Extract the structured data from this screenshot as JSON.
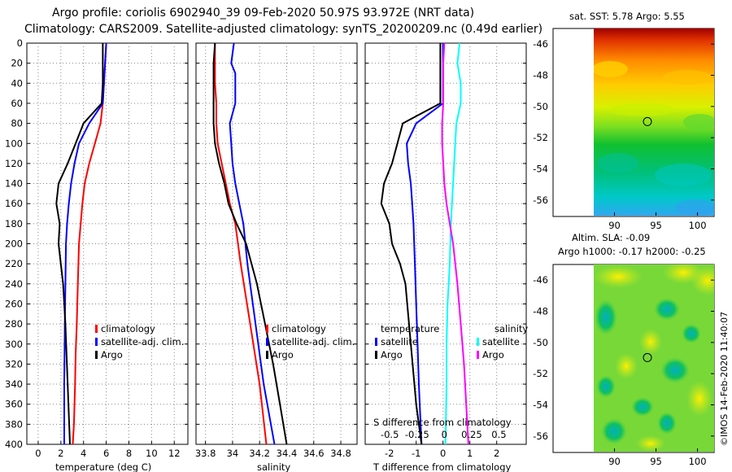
{
  "header": {
    "line1": "Argo profile: coriolis 6902940_39 09-Feb-2020 50.97S 93.972E (NRT data)",
    "line2": "Climatology: CARS2009. Satellite-adjusted climatology: synTS_20200209.nc (0.49d earlier)"
  },
  "colors": {
    "climatology": "#ff0000",
    "satellite": "#0000ff",
    "argo": "#000000",
    "sal_sat": "#00ffff",
    "sal_argo": "#ff00ff"
  },
  "chart_data": [
    {
      "type": "line",
      "id": "temperature",
      "xlabel": "temperature (deg C)",
      "ylabel": "depth",
      "xlim": [
        -1,
        13.2
      ],
      "ylim": [
        400,
        0
      ],
      "xticks": [
        0,
        2,
        4,
        6,
        8,
        10,
        12
      ],
      "xtick_labels": [
        "0",
        "2",
        "4",
        "6",
        "8",
        "10",
        "12"
      ],
      "yticks": [
        0,
        20,
        40,
        60,
        80,
        100,
        120,
        140,
        160,
        180,
        200,
        220,
        240,
        260,
        280,
        300,
        320,
        340,
        360,
        380,
        400
      ],
      "legend": [
        "climatology",
        "satellite-adj. clim.",
        "Argo"
      ],
      "series": [
        {
          "name": "climatology",
          "color": "red",
          "x": [
            6.0,
            5.9,
            5.8,
            5.7,
            5.5,
            5.0,
            4.5,
            4.1,
            3.9,
            3.75,
            3.6,
            3.5,
            3.4,
            3.3,
            3.25,
            3.2,
            3.15,
            3.05
          ],
          "y": [
            0,
            20,
            40,
            60,
            80,
            100,
            120,
            140,
            160,
            180,
            200,
            240,
            280,
            310,
            340,
            360,
            380,
            400
          ]
        },
        {
          "name": "satellite-adj. clim.",
          "color": "blue",
          "x": [
            6.0,
            5.9,
            5.8,
            5.7,
            4.5,
            3.6,
            3.2,
            2.9,
            2.7,
            2.55,
            2.45,
            2.4,
            2.35,
            2.3,
            2.3
          ],
          "y": [
            0,
            20,
            40,
            60,
            80,
            100,
            120,
            140,
            160,
            180,
            200,
            240,
            280,
            340,
            400
          ]
        },
        {
          "name": "Argo",
          "color": "black",
          "x": [
            5.7,
            5.7,
            5.7,
            5.6,
            4.0,
            3.3,
            2.6,
            1.8,
            1.6,
            1.9,
            1.8,
            2.0,
            2.2,
            2.4,
            2.5,
            2.6,
            2.7,
            2.8
          ],
          "y": [
            0,
            20,
            40,
            60,
            80,
            100,
            120,
            140,
            160,
            180,
            200,
            220,
            240,
            280,
            310,
            340,
            370,
            400
          ]
        }
      ]
    },
    {
      "type": "line",
      "id": "salinity",
      "xlabel": "salinity",
      "xlim": [
        33.73,
        34.92
      ],
      "ylim": [
        400,
        0
      ],
      "xticks": [
        33.8,
        34,
        34.2,
        34.4,
        34.6,
        34.8
      ],
      "xtick_labels": [
        "33.8",
        "34",
        "34.2",
        "34.4",
        "34.6",
        "34.8"
      ],
      "legend": [
        "climatology",
        "satellite-adj. clim.",
        "Argo"
      ],
      "series": [
        {
          "name": "climatology",
          "color": "red",
          "x": [
            33.87,
            33.87,
            33.87,
            33.88,
            33.88,
            33.89,
            33.92,
            33.95,
            33.98,
            34.02,
            34.06,
            34.13,
            34.2,
            34.25
          ],
          "y": [
            0,
            20,
            40,
            60,
            80,
            100,
            120,
            140,
            160,
            180,
            220,
            280,
            340,
            400
          ]
        },
        {
          "name": "satellite-adj. clim.",
          "color": "blue",
          "x": [
            34.01,
            33.99,
            34.02,
            34.02,
            33.98,
            33.99,
            34.0,
            34.02,
            34.05,
            34.08,
            34.11,
            34.17,
            34.23,
            34.31
          ],
          "y": [
            0,
            20,
            30,
            60,
            80,
            100,
            120,
            140,
            160,
            180,
            220,
            280,
            340,
            400
          ]
        },
        {
          "name": "Argo",
          "color": "black",
          "x": [
            33.87,
            33.86,
            33.86,
            33.86,
            33.86,
            33.87,
            33.9,
            33.94,
            33.97,
            34.03,
            34.1,
            34.18,
            34.24,
            34.3,
            34.35,
            34.4
          ],
          "y": [
            0,
            20,
            40,
            60,
            80,
            100,
            120,
            140,
            160,
            180,
            200,
            240,
            280,
            320,
            360,
            400
          ]
        }
      ]
    },
    {
      "type": "line",
      "id": "difference",
      "xlabel": "T difference from climatology",
      "xlabel_top": "S difference from climatology",
      "xlim": [
        -2.9,
        3.1
      ],
      "ylim": [
        400,
        0
      ],
      "xticks": [
        -2,
        -1,
        0,
        1,
        2
      ],
      "xtick_labels": [
        "-2",
        "-1",
        "0",
        "1",
        "2"
      ],
      "top_ticks": [
        -0.5,
        -0.25,
        0,
        0.25,
        0.5
      ],
      "top_tick_labels": [
        "-0.5",
        "-0.25",
        "0",
        "0.25",
        "0.5"
      ],
      "legend_titles": [
        "temperature",
        "salinity"
      ],
      "legend": [
        "satellite",
        "Argo",
        "satellite",
        "Argo"
      ],
      "series": [
        {
          "name": "temperature satellite",
          "color": "blue",
          "x": [
            0.0,
            0.0,
            0.0,
            0.0,
            -1.0,
            -1.35,
            -1.3,
            -1.2,
            -1.15,
            -1.1,
            -1.05,
            -1.0,
            -0.95,
            -0.9,
            -0.85,
            -0.8
          ],
          "y": [
            0,
            20,
            40,
            60,
            80,
            100,
            120,
            140,
            160,
            180,
            220,
            260,
            300,
            340,
            370,
            400
          ]
        },
        {
          "name": "temperature Argo",
          "color": "black",
          "x": [
            -0.1,
            -0.1,
            -0.1,
            -0.1,
            -1.5,
            -1.7,
            -1.9,
            -2.2,
            -2.3,
            -2.0,
            -1.9,
            -1.6,
            -1.4,
            -1.2,
            -1.0,
            -0.8
          ],
          "y": [
            0,
            20,
            40,
            60,
            80,
            100,
            120,
            140,
            160,
            180,
            200,
            220,
            240,
            300,
            360,
            400
          ]
        },
        {
          "name": "salinity satellite",
          "color": "cyan",
          "x": [
            0.14,
            0.12,
            0.15,
            0.15,
            0.11,
            0.1,
            0.09,
            0.08,
            0.07,
            0.06,
            0.05,
            0.03,
            0.02,
            0.02,
            0.01
          ],
          "y": [
            0,
            20,
            40,
            60,
            80,
            100,
            120,
            140,
            160,
            180,
            220,
            260,
            300,
            340,
            400
          ]
        },
        {
          "name": "salinity Argo",
          "color": "magenta",
          "x": [
            0.0,
            -0.01,
            -0.01,
            -0.01,
            -0.02,
            -0.02,
            -0.01,
            -0.0,
            0.02,
            0.05,
            0.08,
            0.12,
            0.15,
            0.18,
            0.2,
            0.22
          ],
          "y": [
            0,
            20,
            40,
            60,
            80,
            100,
            120,
            140,
            160,
            180,
            200,
            240,
            280,
            320,
            360,
            400
          ]
        }
      ]
    },
    {
      "type": "heatmap",
      "id": "sst_map",
      "title": "sat. SST: 5.78 Argo: 5.55",
      "xlim": [
        87.5,
        102
      ],
      "ylim": [
        -57,
        -45
      ],
      "xticks": [
        90,
        95,
        100
      ],
      "xtick_labels": [
        "90",
        "95",
        "100"
      ],
      "yticks": [
        -46,
        -48,
        -50,
        -52,
        -54,
        -56
      ],
      "ytick_labels": [
        "-46",
        "-48",
        "-50",
        "-52",
        "-54",
        "-56"
      ],
      "marker": {
        "lon": 93.97,
        "lat": -50.97
      }
    },
    {
      "type": "heatmap",
      "id": "sla_map",
      "title_line1": "Altim. SLA: -0.09",
      "title_line2": "Argo h1000: -0.17 h2000: -0.25",
      "xlim": [
        87.5,
        102
      ],
      "ylim": [
        -57,
        -45
      ],
      "xticks": [
        90,
        95,
        100
      ],
      "xtick_labels": [
        "90",
        "95",
        "100"
      ],
      "yticks": [
        -46,
        -48,
        -50,
        -52,
        -54,
        -56
      ],
      "ytick_labels": [
        "-46",
        "-48",
        "-50",
        "-52",
        "-54",
        "-56"
      ],
      "marker": {
        "lon": 93.97,
        "lat": -50.97
      }
    }
  ],
  "footer": {
    "stamp": "©IMOS 14-Feb-2020 11:40:07"
  }
}
